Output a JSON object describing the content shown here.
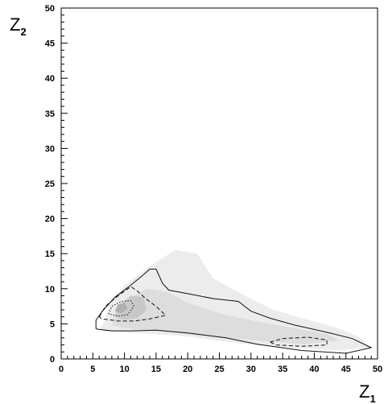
{
  "chart_data": {
    "type": "heatmap",
    "title": "",
    "xlabel": "Z",
    "xlabel_sub": "1",
    "ylabel": "Z",
    "ylabel_sub": "2",
    "xlim": [
      0,
      50
    ],
    "ylim": [
      0,
      50
    ],
    "xticks": [
      0,
      5,
      10,
      15,
      20,
      25,
      30,
      35,
      40,
      45,
      50
    ],
    "yticks": [
      0,
      5,
      10,
      15,
      20,
      25,
      30,
      35,
      40,
      45,
      50
    ],
    "grid": false,
    "density_regions": [
      {
        "name": "outer-shade",
        "shade": "#ececec",
        "points": [
          [
            7,
            5.5
          ],
          [
            7.5,
            7.5
          ],
          [
            10,
            10.5
          ],
          [
            14,
            13.2
          ],
          [
            18,
            15.5
          ],
          [
            21.5,
            15
          ],
          [
            24,
            11.5
          ],
          [
            28,
            9.5
          ],
          [
            33,
            7.2
          ],
          [
            38,
            5.8
          ],
          [
            43,
            4.6
          ],
          [
            47,
            3.2
          ],
          [
            49,
            1.6
          ],
          [
            44,
            1.2
          ],
          [
            36,
            1.6
          ],
          [
            28,
            2.2
          ],
          [
            20,
            3.2
          ],
          [
            14,
            3.6
          ],
          [
            9,
            3.8
          ],
          [
            6,
            4.2
          ]
        ]
      },
      {
        "name": "mid-shade",
        "shade": "#dddddd",
        "points": [
          [
            8,
            4.8
          ],
          [
            8.5,
            6.5
          ],
          [
            10.5,
            8.5
          ],
          [
            13.5,
            10
          ],
          [
            17,
            9.5
          ],
          [
            20,
            8
          ],
          [
            25,
            6.5
          ],
          [
            30,
            5.5
          ],
          [
            36,
            4.5
          ],
          [
            42,
            3.6
          ],
          [
            44,
            2.6
          ],
          [
            38,
            2.1
          ],
          [
            30,
            2.7
          ],
          [
            22,
            3.3
          ],
          [
            15,
            4
          ],
          [
            10,
            4.4
          ]
        ]
      },
      {
        "name": "inner-shade",
        "shade": "#c8c8c8",
        "points": [
          [
            8.5,
            6
          ],
          [
            9,
            7.5
          ],
          [
            11,
            9
          ],
          [
            13,
            8.8
          ],
          [
            13.5,
            7
          ],
          [
            12,
            5.8
          ],
          [
            10,
            5.6
          ]
        ]
      },
      {
        "name": "core-shade",
        "shade": "#b0b0b0",
        "points": [
          [
            8.5,
            6.8
          ],
          [
            9,
            7.8
          ],
          [
            10,
            8
          ],
          [
            10.5,
            7.2
          ],
          [
            9.5,
            6.5
          ]
        ]
      }
    ],
    "contours": [
      {
        "name": "outer-contour",
        "style": "solid",
        "points": [
          [
            5.5,
            4.3
          ],
          [
            5.5,
            5.5
          ],
          [
            6.5,
            6.8
          ],
          [
            8.5,
            8.8
          ],
          [
            11,
            10.5
          ],
          [
            13,
            12
          ],
          [
            14,
            12.8
          ],
          [
            15,
            12.8
          ],
          [
            16,
            10.8
          ],
          [
            17,
            9.8
          ],
          [
            20,
            9.3
          ],
          [
            24,
            8.6
          ],
          [
            28,
            8.2
          ],
          [
            30,
            6.8
          ],
          [
            33,
            5.8
          ],
          [
            37,
            4.8
          ],
          [
            42,
            3.8
          ],
          [
            46,
            2.9
          ],
          [
            49,
            1.6
          ],
          [
            45,
            0.8
          ],
          [
            38,
            1.2
          ],
          [
            31,
            2.1
          ],
          [
            26,
            3
          ],
          [
            20,
            3.7
          ],
          [
            15,
            4.1
          ],
          [
            11,
            4
          ],
          [
            8,
            4
          ],
          [
            6,
            4.2
          ],
          [
            5.5,
            4.3
          ]
        ]
      },
      {
        "name": "outer-dashed-contour",
        "style": "dashed",
        "points": [
          [
            6,
            6
          ],
          [
            7,
            7.5
          ],
          [
            9,
            9
          ],
          [
            11,
            10.3
          ],
          [
            12,
            9.7
          ],
          [
            13.5,
            8.5
          ],
          [
            15,
            7.5
          ],
          [
            16.5,
            6.2
          ],
          [
            14,
            5.7
          ],
          [
            11.5,
            5.4
          ],
          [
            9,
            5.4
          ],
          [
            7.5,
            5.6
          ],
          [
            6.5,
            5.7
          ],
          [
            6,
            6
          ]
        ]
      },
      {
        "name": "inner-dotted-contour",
        "style": "dotted",
        "points": [
          [
            7.5,
            6.4
          ],
          [
            8,
            7.5
          ],
          [
            9.5,
            8.2
          ],
          [
            11,
            8.3
          ],
          [
            11.5,
            7.5
          ],
          [
            10.5,
            6.3
          ],
          [
            9,
            6.1
          ],
          [
            7.5,
            6.4
          ]
        ]
      },
      {
        "name": "tail-dashed-contour",
        "style": "dashed",
        "points": [
          [
            33,
            2.4
          ],
          [
            35,
            2.9
          ],
          [
            39,
            3.1
          ],
          [
            42,
            2.7
          ],
          [
            42,
            2
          ],
          [
            38,
            1.8
          ],
          [
            34,
            2
          ],
          [
            33,
            2.4
          ]
        ]
      }
    ]
  }
}
